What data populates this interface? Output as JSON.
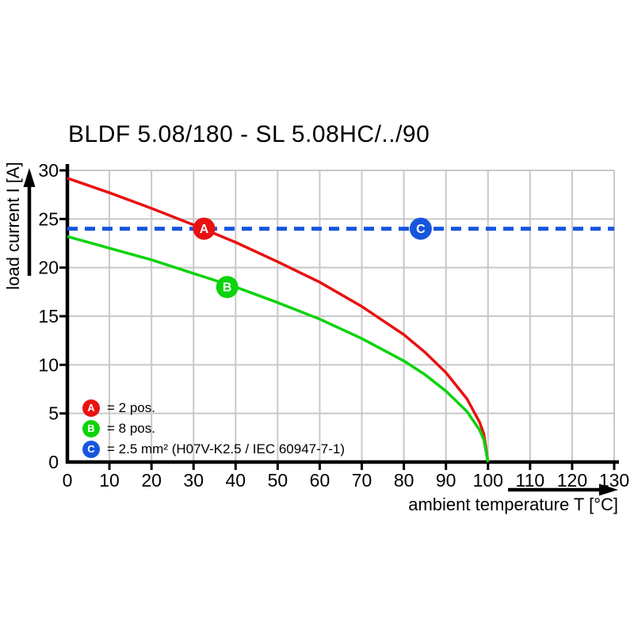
{
  "title": "BLDF 5.08/180 - SL 5.08HC/../90",
  "chart_data": {
    "type": "line",
    "title": "BLDF 5.08/180 - SL 5.08HC/../90",
    "xlabel": "ambient temperature T [°C]",
    "ylabel": "load current I [A]",
    "xlim": [
      0,
      130
    ],
    "ylim": [
      0,
      30
    ],
    "x_ticks": [
      0,
      10,
      20,
      30,
      40,
      50,
      60,
      70,
      80,
      90,
      100,
      110,
      120,
      130
    ],
    "y_ticks": [
      0,
      5,
      10,
      15,
      20,
      25,
      30
    ],
    "grid": true,
    "grid_color": "#c8c8c8",
    "axis_color": "#000000",
    "legend_position": "inside-bottom-left",
    "series": [
      {
        "name": "A",
        "description": "2 pos.",
        "color": "#e81111",
        "style": "solid",
        "points": [
          [
            0,
            29.2
          ],
          [
            10,
            27.7
          ],
          [
            20,
            26.1
          ],
          [
            30,
            24.4
          ],
          [
            40,
            22.6
          ],
          [
            50,
            20.6
          ],
          [
            60,
            18.5
          ],
          [
            70,
            16.0
          ],
          [
            80,
            13.1
          ],
          [
            85,
            11.3
          ],
          [
            90,
            9.2
          ],
          [
            95,
            6.5
          ],
          [
            98,
            4.1
          ],
          [
            99,
            2.9
          ],
          [
            100,
            0
          ]
        ]
      },
      {
        "name": "B",
        "description": "8 pos.",
        "color": "#0cd30c",
        "style": "solid",
        "points": [
          [
            0,
            23.2
          ],
          [
            10,
            22.0
          ],
          [
            20,
            20.8
          ],
          [
            30,
            19.4
          ],
          [
            40,
            18.0
          ],
          [
            50,
            16.4
          ],
          [
            60,
            14.7
          ],
          [
            70,
            12.7
          ],
          [
            80,
            10.4
          ],
          [
            85,
            9.0
          ],
          [
            90,
            7.3
          ],
          [
            95,
            5.2
          ],
          [
            98,
            3.3
          ],
          [
            99,
            2.3
          ],
          [
            100,
            0
          ]
        ]
      },
      {
        "name": "C",
        "description": "2.5 mm² (H07V-K2.5 / IEC 60947-7-1)",
        "color": "#1656dd",
        "style": "dashed",
        "points": [
          [
            0,
            24
          ],
          [
            130,
            24
          ]
        ]
      }
    ],
    "markers": [
      {
        "label": "A",
        "x": 32.5,
        "y": 24,
        "color": "#e81111"
      },
      {
        "label": "B",
        "x": 38,
        "y": 18,
        "color": "#0cd30c"
      },
      {
        "label": "C",
        "x": 84,
        "y": 24,
        "color": "#1656dd"
      }
    ]
  },
  "legend": {
    "items": [
      {
        "key": "A",
        "label": "= 2 pos.",
        "color": "#e81111"
      },
      {
        "key": "B",
        "label": "= 8 pos.",
        "color": "#0cd30c"
      },
      {
        "key": "C",
        "label": "= 2.5 mm² (H07V-K2.5 / IEC 60947-7-1)",
        "color": "#1656dd"
      }
    ]
  }
}
